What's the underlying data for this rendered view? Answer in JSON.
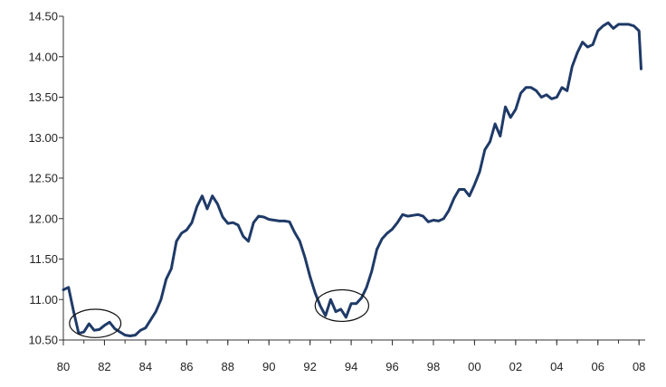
{
  "chart_data": {
    "type": "line",
    "title": "",
    "xlabel": "",
    "ylabel": "",
    "xlim": [
      1980,
      2008.3
    ],
    "ylim": [
      10.5,
      14.5
    ],
    "grid": false,
    "legend": "none",
    "line_color": "#1f3a68",
    "x_tick_values": [
      1980,
      1982,
      1984,
      1986,
      1988,
      1990,
      1992,
      1994,
      1996,
      1998,
      2000,
      2002,
      2004,
      2006,
      2008
    ],
    "x_tick_labels": [
      "80",
      "82",
      "84",
      "86",
      "88",
      "90",
      "92",
      "94",
      "96",
      "98",
      "00",
      "02",
      "04",
      "06",
      "08"
    ],
    "y_tick_values": [
      10.5,
      11.0,
      11.5,
      12.0,
      12.5,
      13.0,
      13.5,
      14.0,
      14.5
    ],
    "y_tick_labels": [
      "10.50",
      "11.00",
      "11.50",
      "12.00",
      "12.50",
      "13.00",
      "13.50",
      "14.00",
      "14.50"
    ],
    "series": [
      {
        "x": [
          1980.0,
          1980.25,
          1980.5,
          1980.75,
          1981.0,
          1981.25,
          1981.5,
          1981.75,
          1982.0,
          1982.25,
          1982.5,
          1982.75,
          1983.0,
          1983.25,
          1983.5,
          1983.75,
          1984.0,
          1984.25,
          1984.5,
          1984.75,
          1985.0,
          1985.25,
          1985.5,
          1985.75,
          1986.0,
          1986.25,
          1986.5,
          1986.75,
          1987.0,
          1987.25,
          1987.5,
          1987.75,
          1988.0,
          1988.25,
          1988.5,
          1988.75,
          1989.0,
          1989.25,
          1989.5,
          1989.75,
          1990.0,
          1990.25,
          1990.5,
          1990.75,
          1991.0,
          1991.25,
          1991.5,
          1991.75,
          1992.0,
          1992.25,
          1992.5,
          1992.75,
          1993.0,
          1993.25,
          1993.5,
          1993.75,
          1994.0,
          1994.25,
          1994.5,
          1994.75,
          1995.0,
          1995.25,
          1995.5,
          1995.75,
          1996.0,
          1996.25,
          1996.5,
          1996.75,
          1997.0,
          1997.25,
          1997.5,
          1997.75,
          1998.0,
          1998.25,
          1998.5,
          1998.75,
          1999.0,
          1999.25,
          1999.5,
          1999.75,
          2000.0,
          2000.25,
          2000.5,
          2000.75,
          2001.0,
          2001.25,
          2001.5,
          2001.75,
          2002.0,
          2002.25,
          2002.5,
          2002.75,
          2003.0,
          2003.25,
          2003.5,
          2003.75,
          2004.0,
          2004.25,
          2004.5,
          2004.75,
          2005.0,
          2005.25,
          2005.5,
          2005.75,
          2006.0,
          2006.25,
          2006.5,
          2006.75,
          2007.0,
          2007.25,
          2007.5,
          2007.75,
          2008.0,
          2008.1
        ],
        "values": [
          11.12,
          11.15,
          10.85,
          10.58,
          10.6,
          10.7,
          10.62,
          10.63,
          10.68,
          10.72,
          10.64,
          10.6,
          10.56,
          10.55,
          10.56,
          10.62,
          10.65,
          10.75,
          10.85,
          11.0,
          11.25,
          11.38,
          11.72,
          11.82,
          11.86,
          11.95,
          12.15,
          12.28,
          12.12,
          12.28,
          12.18,
          12.02,
          11.94,
          11.95,
          11.92,
          11.78,
          11.72,
          11.95,
          12.03,
          12.02,
          11.99,
          11.98,
          11.97,
          11.97,
          11.96,
          11.83,
          11.72,
          11.52,
          11.28,
          11.08,
          10.92,
          10.8,
          11.0,
          10.85,
          10.88,
          10.78,
          10.95,
          10.95,
          11.02,
          11.15,
          11.35,
          11.62,
          11.75,
          11.82,
          11.87,
          11.95,
          12.05,
          12.03,
          12.04,
          12.05,
          12.03,
          11.96,
          11.98,
          11.97,
          12.0,
          12.1,
          12.25,
          12.36,
          12.36,
          12.28,
          12.42,
          12.58,
          12.85,
          12.95,
          13.17,
          13.02,
          13.38,
          13.25,
          13.35,
          13.55,
          13.62,
          13.62,
          13.58,
          13.5,
          13.53,
          13.48,
          13.5,
          13.62,
          13.58,
          13.88,
          14.05,
          14.18,
          14.12,
          14.15,
          14.32,
          14.38,
          14.42,
          14.35,
          14.4,
          14.4,
          14.4,
          14.38,
          14.32,
          13.85
        ]
      }
    ],
    "annotations": [
      {
        "shape": "ellipse",
        "x_range": [
          1980.3,
          1982.8
        ],
        "y_range": [
          10.53,
          10.88
        ]
      },
      {
        "shape": "ellipse",
        "x_range": [
          1992.25,
          1994.85
        ],
        "y_range": [
          10.73,
          11.12
        ]
      }
    ]
  }
}
